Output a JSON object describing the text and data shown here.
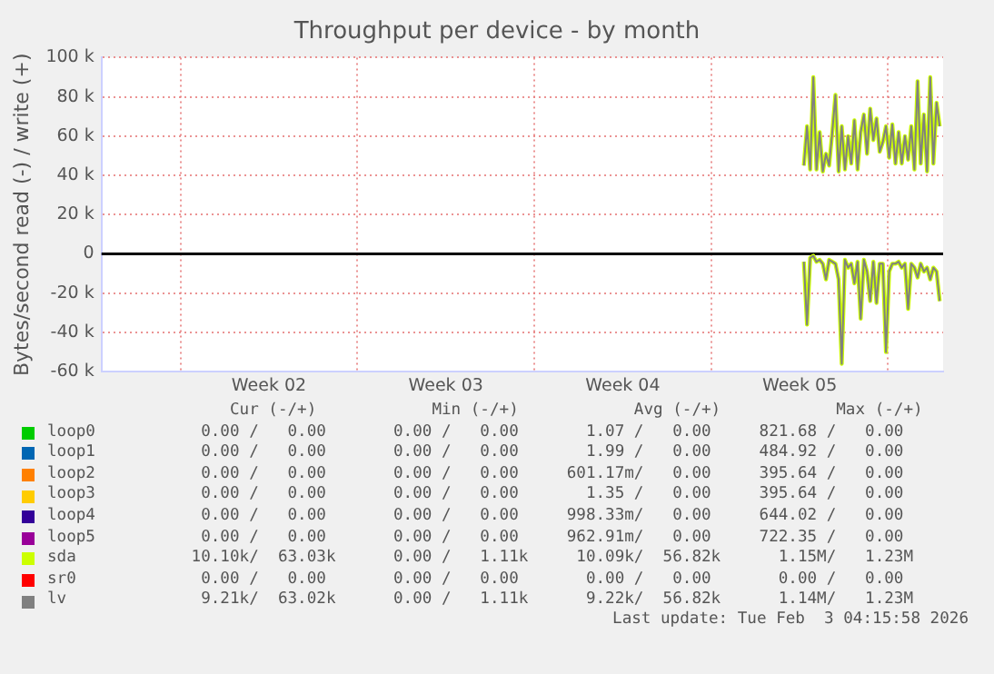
{
  "chart_data": {
    "type": "line",
    "title": "Throughput per device - by month",
    "ylabel": "Bytes/second read (-) / write (+)",
    "x": [
      "2026-01-28T16:00",
      "2026-01-28T19:00",
      "2026-01-28T22:00",
      "2026-01-29T01:00",
      "2026-01-29T04:00",
      "2026-01-29T07:00",
      "2026-01-29T10:00",
      "2026-01-29T13:00",
      "2026-01-29T16:00",
      "2026-01-29T19:00",
      "2026-01-29T22:00",
      "2026-01-30T01:00",
      "2026-01-30T04:00",
      "2026-01-30T07:00",
      "2026-01-30T10:00",
      "2026-01-30T13:00",
      "2026-01-30T16:00",
      "2026-01-30T19:00",
      "2026-01-30T22:00",
      "2026-01-31T01:00",
      "2026-01-31T04:00",
      "2026-01-31T07:00",
      "2026-01-31T10:00",
      "2026-01-31T13:00",
      "2026-01-31T16:00",
      "2026-01-31T19:00",
      "2026-01-31T22:00",
      "2026-02-01T01:00",
      "2026-02-01T04:00",
      "2026-02-01T07:00",
      "2026-02-01T10:00",
      "2026-02-01T13:00",
      "2026-02-01T16:00",
      "2026-02-01T19:00",
      "2026-02-01T22:00",
      "2026-02-02T01:00",
      "2026-02-02T04:00",
      "2026-02-02T07:00",
      "2026-02-02T10:00",
      "2026-02-02T13:00",
      "2026-02-02T16:00",
      "2026-02-02T19:00",
      "2026-02-02T22:00",
      "2026-02-03T01:00"
    ],
    "xlim": [
      "2025-12-31T21:00",
      "2026-02-03T04:15"
    ],
    "xticks": [
      {
        "value": "2026-01-04T00:00",
        "label": null
      },
      {
        "value": "2026-01-07T12:00",
        "label": "Week 02"
      },
      {
        "value": "2026-01-11T00:00",
        "label": null
      },
      {
        "value": "2026-01-14T12:00",
        "label": "Week 03"
      },
      {
        "value": "2026-01-18T00:00",
        "label": null
      },
      {
        "value": "2026-01-21T12:00",
        "label": "Week 04"
      },
      {
        "value": "2026-01-25T00:00",
        "label": null
      },
      {
        "value": "2026-01-28T12:00",
        "label": "Week 05"
      },
      {
        "value": "2026-02-01T00:00",
        "label": null
      }
    ],
    "ylim": [
      -60000,
      100000
    ],
    "yticks": [
      {
        "value": -60000,
        "label": "-60 k"
      },
      {
        "value": -40000,
        "label": "-40 k"
      },
      {
        "value": -20000,
        "label": "-20 k"
      },
      0,
      {
        "value": 20000,
        "label": "20 k"
      },
      {
        "value": 40000,
        "label": "40 k"
      },
      {
        "value": 60000,
        "label": "60 k"
      },
      {
        "value": 80000,
        "label": "80 k"
      },
      {
        "value": 100000,
        "label": "100 k"
      }
    ],
    "grid": true,
    "legend": "bottom",
    "marker": "none",
    "line_style": "solid",
    "ref_lines": [
      {
        "axis": "y",
        "value": 0,
        "color": "#000000"
      }
    ],
    "series": [
      {
        "name": "loop0",
        "color": "#00cc00",
        "values": [
          null,
          null,
          null,
          null,
          null,
          null,
          null,
          null,
          null,
          null,
          null,
          null,
          null,
          null,
          null,
          null,
          null,
          null,
          null,
          null,
          null,
          null,
          null,
          null,
          null,
          null,
          null,
          null,
          null,
          null,
          null,
          null,
          null,
          null,
          null,
          null,
          null,
          null,
          null,
          null,
          null,
          null,
          null,
          null
        ]
      },
      {
        "name": "loop1",
        "color": "#0066b3",
        "values": [
          null,
          null,
          null,
          null,
          null,
          null,
          null,
          null,
          null,
          null,
          null,
          null,
          null,
          null,
          null,
          null,
          null,
          null,
          null,
          null,
          null,
          null,
          null,
          null,
          null,
          null,
          null,
          null,
          null,
          null,
          null,
          null,
          null,
          null,
          null,
          null,
          null,
          null,
          null,
          null,
          null,
          null,
          null,
          null
        ]
      },
      {
        "name": "loop2",
        "color": "#ff8000",
        "values": [
          null,
          null,
          null,
          null,
          null,
          null,
          null,
          null,
          null,
          null,
          null,
          null,
          null,
          null,
          null,
          null,
          null,
          null,
          null,
          null,
          null,
          null,
          null,
          null,
          null,
          null,
          null,
          null,
          null,
          null,
          null,
          null,
          null,
          null,
          null,
          null,
          null,
          null,
          null,
          null,
          null,
          null,
          null,
          null
        ]
      },
      {
        "name": "loop3",
        "color": "#ffcc00",
        "values": [
          null,
          null,
          null,
          null,
          null,
          null,
          null,
          null,
          null,
          null,
          null,
          null,
          null,
          null,
          null,
          null,
          null,
          null,
          null,
          null,
          null,
          null,
          null,
          null,
          null,
          null,
          null,
          null,
          null,
          null,
          null,
          null,
          null,
          null,
          null,
          null,
          null,
          null,
          null,
          null,
          null,
          null,
          null,
          null
        ]
      },
      {
        "name": "loop4",
        "color": "#330099",
        "values": [
          null,
          null,
          null,
          null,
          null,
          null,
          null,
          null,
          null,
          null,
          null,
          null,
          null,
          null,
          null,
          null,
          null,
          null,
          null,
          null,
          null,
          null,
          null,
          null,
          null,
          null,
          null,
          null,
          null,
          null,
          null,
          null,
          null,
          null,
          null,
          null,
          null,
          null,
          null,
          null,
          null,
          null,
          null,
          null
        ]
      },
      {
        "name": "loop5",
        "color": "#990099",
        "values": [
          null,
          null,
          null,
          null,
          null,
          null,
          null,
          null,
          null,
          null,
          null,
          null,
          null,
          null,
          null,
          null,
          null,
          null,
          null,
          null,
          null,
          null,
          null,
          null,
          null,
          null,
          null,
          null,
          null,
          null,
          null,
          null,
          null,
          null,
          null,
          null,
          null,
          null,
          null,
          null,
          null,
          null,
          null,
          null
        ]
      },
      {
        "name": "sda",
        "color": "#ccff00",
        "values": [
          45000,
          65000,
          43000,
          90000,
          43000,
          62000,
          42000,
          51000,
          45000,
          62000,
          81000,
          42000,
          65000,
          43000,
          60000,
          46000,
          68000,
          43000,
          62000,
          71000,
          51000,
          74000,
          58000,
          69000,
          52000,
          57000,
          65000,
          49000,
          66000,
          46000,
          62000,
          46000,
          60000,
          48000,
          65000,
          43000,
          88000,
          46000,
          71000,
          42000,
          90000,
          46000,
          77000,
          65000
        ]
      },
      {
        "color": "#ccff00",
        "values": [
          -4000,
          -36000,
          -2000,
          -1000,
          -4000,
          -3000,
          -5000,
          -13000,
          -3000,
          -4000,
          -5000,
          -13000,
          -56000,
          -3000,
          -7000,
          -5000,
          -15000,
          -4000,
          -33000,
          -3000,
          -9000,
          -24000,
          -4000,
          -25000,
          -5000,
          -5000,
          -50000,
          -9000,
          -5000,
          -5000,
          -4000,
          -7000,
          -5000,
          -28000,
          -5000,
          -7000,
          -12000,
          -5000,
          -9000,
          -7000,
          -13000,
          -7000,
          -9000,
          -24000
        ]
      },
      {
        "name": "sr0",
        "color": "#ff0000",
        "values": [
          null,
          null,
          null,
          null,
          null,
          null,
          null,
          null,
          null,
          null,
          null,
          null,
          null,
          null,
          null,
          null,
          null,
          null,
          null,
          null,
          null,
          null,
          null,
          null,
          null,
          null,
          null,
          null,
          null,
          null,
          null,
          null,
          null,
          null,
          null,
          null,
          null,
          null,
          null,
          null,
          null,
          null,
          null,
          null
        ]
      },
      {
        "name": "lv",
        "color": "#808080",
        "values": [
          45000,
          65000,
          43000,
          90000,
          43000,
          62000,
          42000,
          51000,
          45000,
          62000,
          81000,
          42000,
          65000,
          43000,
          60000,
          46000,
          68000,
          43000,
          62000,
          71000,
          51000,
          74000,
          58000,
          69000,
          52000,
          57000,
          65000,
          49000,
          66000,
          46000,
          62000,
          46000,
          60000,
          48000,
          65000,
          43000,
          88000,
          46000,
          71000,
          42000,
          90000,
          46000,
          77000,
          65000
        ]
      },
      {
        "color": "#808080",
        "values": [
          -4000,
          -36000,
          -2000,
          -1000,
          -4000,
          -3000,
          -5000,
          -13000,
          -3000,
          -4000,
          -5000,
          -13000,
          -56000,
          -3000,
          -7000,
          -5000,
          -15000,
          -4000,
          -33000,
          -3000,
          -9000,
          -24000,
          -4000,
          -25000,
          -5000,
          -5000,
          -50000,
          -9000,
          -5000,
          -5000,
          -4000,
          -7000,
          -5000,
          -28000,
          -5000,
          -7000,
          -12000,
          -5000,
          -9000,
          -7000,
          -13000,
          -7000,
          -9000,
          -24000
        ]
      }
    ],
    "annotations": [
      "     Cur (-/+)            Min (-/+)            Avg (-/+)            Max (-/+)",
      "  0.00 /   0.00       0.00 /   0.00       1.07 /   0.00     821.68 /   0.00",
      "  0.00 /   0.00       0.00 /   0.00       1.99 /   0.00     484.92 /   0.00",
      "  0.00 /   0.00       0.00 /   0.00     601.17m/   0.00     395.64 /   0.00",
      "  0.00 /   0.00       0.00 /   0.00       1.35 /   0.00     395.64 /   0.00",
      "  0.00 /   0.00       0.00 /   0.00     998.33m/   0.00     644.02 /   0.00",
      "  0.00 /   0.00       0.00 /   0.00     962.91m/   0.00     722.35 /   0.00",
      " 10.10k/  63.03k      0.00 /   1.11k     10.09k/  56.82k      1.15M/   1.23M",
      "  0.00 /   0.00       0.00 /   0.00       0.00 /   0.00       0.00 /   0.00",
      "  9.21k/  63.02k      0.00 /   1.11k      9.22k/  56.82k      1.14M/   1.23M",
      "Last update: Tue Feb  3 04:15:58 2026"
    ]
  }
}
